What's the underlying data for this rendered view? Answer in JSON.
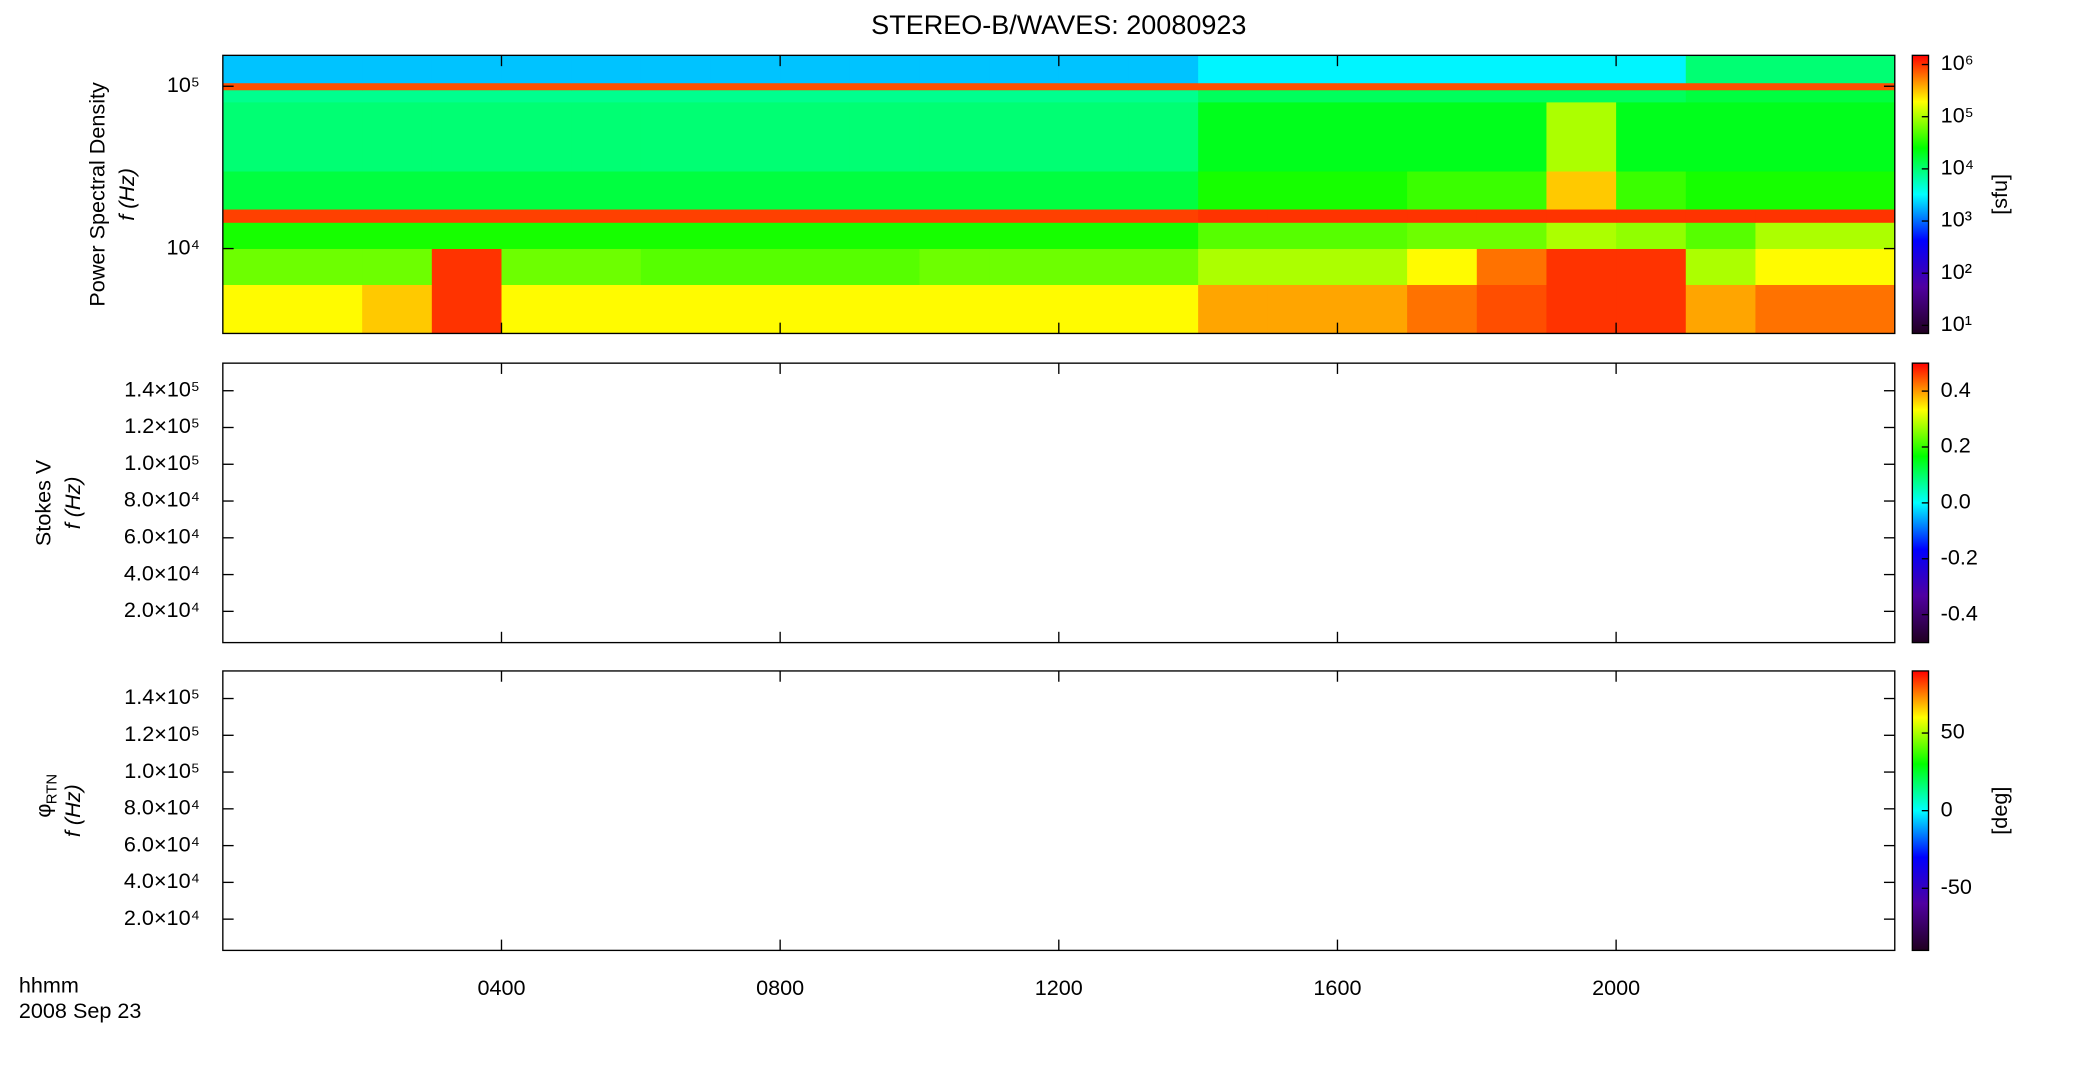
{
  "chart_data": [
    {
      "type": "heatmap",
      "title": "STEREO-B/WAVES: 20080923",
      "ylabel": [
        "Power Spectral Density",
        "f (Hz)"
      ],
      "log_y": true,
      "ylim": [
        3000,
        155000
      ],
      "yticks": [
        {
          "value": 10000,
          "label": "10⁴"
        },
        {
          "value": 100000,
          "label": "10⁵"
        }
      ],
      "xlim": [
        0,
        24
      ],
      "xbins": [
        0,
        1,
        2,
        3,
        4,
        5,
        6,
        7,
        8,
        9,
        10,
        11,
        12,
        13,
        14,
        15,
        16,
        17,
        18,
        19,
        20,
        21,
        22,
        23,
        24
      ],
      "ybins": [
        3000,
        6000,
        10000,
        14500,
        17500,
        30000,
        80000,
        95000,
        105000,
        155000
      ],
      "values": [
        [
          200000,
          200000,
          300000,
          1000000,
          200000,
          200000,
          200000,
          200000,
          200000,
          200000,
          200000,
          200000,
          200000,
          200000,
          400000,
          400000,
          400000,
          600000,
          800000,
          1000000,
          1000000,
          400000,
          600000,
          600000
        ],
        [
          60000,
          60000,
          60000,
          1000000,
          60000,
          60000,
          50000,
          50000,
          50000,
          50000,
          60000,
          60000,
          60000,
          60000,
          100000,
          100000,
          100000,
          200000,
          600000,
          1000000,
          1000000,
          100000,
          200000,
          200000
        ],
        [
          30000,
          30000,
          30000,
          30000,
          30000,
          30000,
          30000,
          30000,
          30000,
          30000,
          30000,
          30000,
          30000,
          30000,
          50000,
          50000,
          50000,
          60000,
          60000,
          100000,
          80000,
          50000,
          100000,
          100000
        ],
        [
          900000,
          900000,
          900000,
          900000,
          900000,
          900000,
          900000,
          900000,
          900000,
          900000,
          900000,
          900000,
          900000,
          900000,
          1000000,
          1000000,
          1000000,
          1000000,
          1000000,
          1000000,
          1000000,
          1000000,
          1000000,
          1000000
        ],
        [
          15000,
          15000,
          15000,
          15000,
          15000,
          15000,
          15000,
          15000,
          15000,
          15000,
          15000,
          15000,
          15000,
          15000,
          30000,
          30000,
          30000,
          40000,
          40000,
          300000,
          40000,
          30000,
          30000,
          30000
        ],
        [
          10000,
          10000,
          10000,
          10000,
          10000,
          10000,
          10000,
          10000,
          10000,
          10000,
          10000,
          10000,
          10000,
          10000,
          20000,
          20000,
          20000,
          20000,
          20000,
          100000,
          20000,
          20000,
          20000,
          20000
        ],
        [
          8000,
          8000,
          8000,
          8000,
          8000,
          8000,
          8000,
          8000,
          8000,
          8000,
          8000,
          8000,
          8000,
          8000,
          12000,
          12000,
          12000,
          12000,
          12000,
          12000,
          12000,
          15000,
          15000,
          15000
        ],
        [
          800000,
          800000,
          800000,
          800000,
          800000,
          800000,
          800000,
          800000,
          800000,
          800000,
          800000,
          800000,
          800000,
          800000,
          800000,
          800000,
          800000,
          800000,
          800000,
          800000,
          800000,
          800000,
          800000,
          800000
        ],
        [
          2000,
          2000,
          2000,
          2000,
          2000,
          2000,
          2000,
          2000,
          2000,
          2000,
          2000,
          2000,
          2000,
          2000,
          3000,
          3000,
          3000,
          3000,
          3000,
          3000,
          3000,
          10000,
          10000,
          10000
        ]
      ],
      "zlog": true,
      "zlim": [
        7,
        1500000
      ],
      "zticks": [
        {
          "value": 10,
          "label": "10¹"
        },
        {
          "value": 100,
          "label": "10²"
        },
        {
          "value": 1000,
          "label": "10³"
        },
        {
          "value": 10000,
          "label": "10⁴"
        },
        {
          "value": 100000,
          "label": "10⁵"
        },
        {
          "value": 1000000,
          "label": "10⁶"
        }
      ],
      "zlabel": "[sfu]",
      "colormap": [
        "#200020",
        "#5000a0",
        "#0000ff",
        "#00ffff",
        "#00ff00",
        "#ffff00",
        "#ff0000"
      ]
    },
    {
      "type": "heatmap",
      "ylabel": [
        "Stokes V",
        "f (Hz)"
      ],
      "log_y": false,
      "ylim": [
        3000,
        155000
      ],
      "yticks": [
        {
          "value": 20000,
          "label": "2.0×10⁴"
        },
        {
          "value": 40000,
          "label": "4.0×10⁴"
        },
        {
          "value": 60000,
          "label": "6.0×10⁴"
        },
        {
          "value": 80000,
          "label": "8.0×10⁴"
        },
        {
          "value": 100000,
          "label": "1.0×10⁵"
        },
        {
          "value": 120000,
          "label": "1.2×10⁵"
        },
        {
          "value": 140000,
          "label": "1.4×10⁵"
        }
      ],
      "xlim": [
        0,
        24
      ],
      "zlog": false,
      "zlim": [
        -0.5,
        0.5
      ],
      "zticks": [
        -0.4,
        -0.2,
        {
          "value": 0,
          "label": "0.0"
        },
        0.2,
        0.4
      ],
      "colormap": [
        "#200020",
        "#5000a0",
        "#0000ff",
        "#00ffff",
        "#00ff00",
        "#ffff00",
        "#ff0000"
      ]
    },
    {
      "type": "heatmap",
      "ylabel": [
        "φ",
        "f (Hz)"
      ],
      "ylabel_subscript": "RTN",
      "log_y": false,
      "ylim": [
        3000,
        155000
      ],
      "yticks": [
        {
          "value": 20000,
          "label": "2.0×10⁴"
        },
        {
          "value": 40000,
          "label": "4.0×10⁴"
        },
        {
          "value": 60000,
          "label": "6.0×10⁴"
        },
        {
          "value": 80000,
          "label": "8.0×10⁴"
        },
        {
          "value": 100000,
          "label": "1.0×10⁵"
        },
        {
          "value": 120000,
          "label": "1.2×10⁵"
        },
        {
          "value": 140000,
          "label": "1.4×10⁵"
        }
      ],
      "xlim": [
        0,
        24
      ],
      "xticks": [
        {
          "value": 4,
          "label": "0400"
        },
        {
          "value": 8,
          "label": "0800"
        },
        {
          "value": 12,
          "label": "1200"
        },
        {
          "value": 16,
          "label": "1600"
        },
        {
          "value": 20,
          "label": "2000"
        }
      ],
      "x_label": "hhmm",
      "date": "2008 Sep 23",
      "zlog": false,
      "zlim": [
        -90,
        90
      ],
      "zticks": [
        -50,
        0,
        50
      ],
      "zlabel": "[deg]",
      "colormap": [
        "#200020",
        "#5000a0",
        "#0000ff",
        "#00ffff",
        "#00ff00",
        "#ffff00",
        "#ff0000"
      ]
    }
  ]
}
